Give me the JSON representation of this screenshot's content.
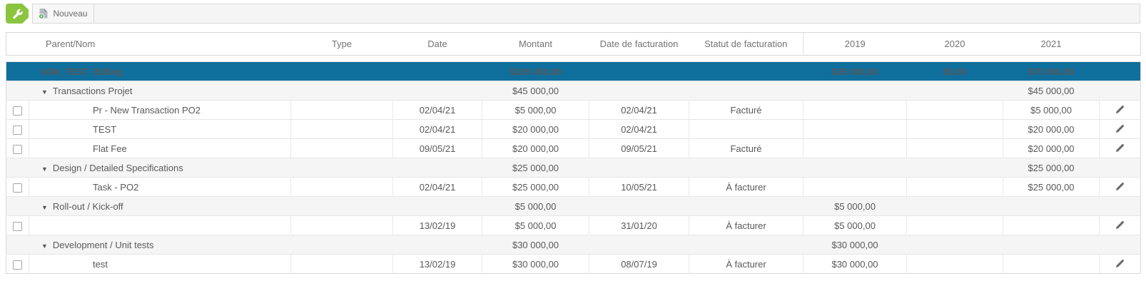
{
  "toolbar": {
    "new_tab_label": "Nouveau"
  },
  "icons": {
    "collapse_arrow": "▼"
  },
  "colors": {
    "summary_blue": "#0f6f9d",
    "accent_green": "#8bc540",
    "group_gray": "#f5f5f5"
  },
  "table": {
    "columns": [
      "Parent/Nom",
      "Type",
      "Date",
      "Montant",
      "Date de facturation",
      "Statut de facturation",
      "2019",
      "2020",
      "2021",
      ""
    ],
    "summary_row": {
      "name": "VAM_TEST_Billing",
      "montant": "$105 000,00",
      "y2019": "$35 000,00",
      "y2020": "$0,00",
      "y2021": "$70 000,00"
    },
    "rows": [
      {
        "kind": "group",
        "name": "Transactions Projet",
        "montant": "$45 000,00",
        "y2021": "$45 000,00"
      },
      {
        "kind": "item",
        "name": "Pr - New Transaction PO2",
        "date": "02/04/21",
        "montant": "$5 000,00",
        "billing_date": "02/04/21",
        "billing_status": "Facturé",
        "y2021": "$5 000,00"
      },
      {
        "kind": "item",
        "name": "TEST",
        "date": "02/04/21",
        "montant": "$20 000,00",
        "billing_date": "02/04/21",
        "billing_status": "",
        "y2021": "$20 000,00"
      },
      {
        "kind": "item",
        "name": "Flat Fee",
        "date": "09/05/21",
        "montant": "$20 000,00",
        "billing_date": "09/05/21",
        "billing_status": "Facturé",
        "y2021": "$20 000,00"
      },
      {
        "kind": "group",
        "name": "Design / Detailed Specifications",
        "montant": "$25 000,00",
        "y2021": "$25 000,00"
      },
      {
        "kind": "item",
        "name": "Task - PO2",
        "date": "02/04/21",
        "montant": "$25 000,00",
        "billing_date": "10/05/21",
        "billing_status": "À facturer",
        "y2021": "$25 000,00"
      },
      {
        "kind": "group",
        "name": "Roll-out / Kick-off",
        "montant": "$5 000,00",
        "y2019": "$5 000,00"
      },
      {
        "kind": "item",
        "name": "",
        "date": "13/02/19",
        "montant": "$5 000,00",
        "billing_date": "31/01/20",
        "billing_status": "À facturer",
        "y2019": "$5 000,00"
      },
      {
        "kind": "group",
        "name": "Development / Unit tests",
        "montant": "$30 000,00",
        "y2019": "$30 000,00"
      },
      {
        "kind": "item",
        "name": "test",
        "date": "13/02/19",
        "montant": "$30 000,00",
        "billing_date": "08/07/19",
        "billing_status": "À facturer",
        "y2019": "$30 000,00"
      }
    ]
  }
}
